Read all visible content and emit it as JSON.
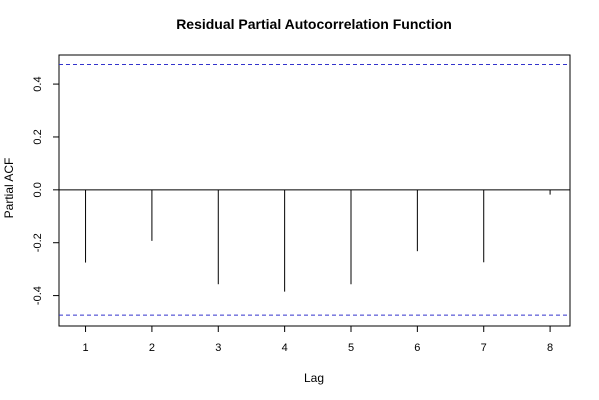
{
  "chart_data": {
    "type": "bar",
    "title": "Residual Partial Autocorrelation Function",
    "xlabel": "Lag",
    "ylabel": "Partial ACF",
    "x": [
      1,
      2,
      3,
      4,
      5,
      6,
      7,
      8
    ],
    "values": [
      -0.275,
      -0.193,
      -0.357,
      -0.385,
      -0.357,
      -0.232,
      -0.274,
      -0.018
    ],
    "xlim": [
      0.6,
      8.3
    ],
    "ylim": [
      -0.515,
      0.51
    ],
    "xticks": [
      "1",
      "2",
      "3",
      "4",
      "5",
      "6",
      "7",
      "8"
    ],
    "yticks": [
      "-0.4",
      "-0.2",
      "0.0",
      "0.2",
      "0.4"
    ],
    "confidence_bounds": [
      0.474,
      -0.474
    ],
    "bound_color": "#3333cc",
    "line_color": "#000000",
    "grid": false
  }
}
